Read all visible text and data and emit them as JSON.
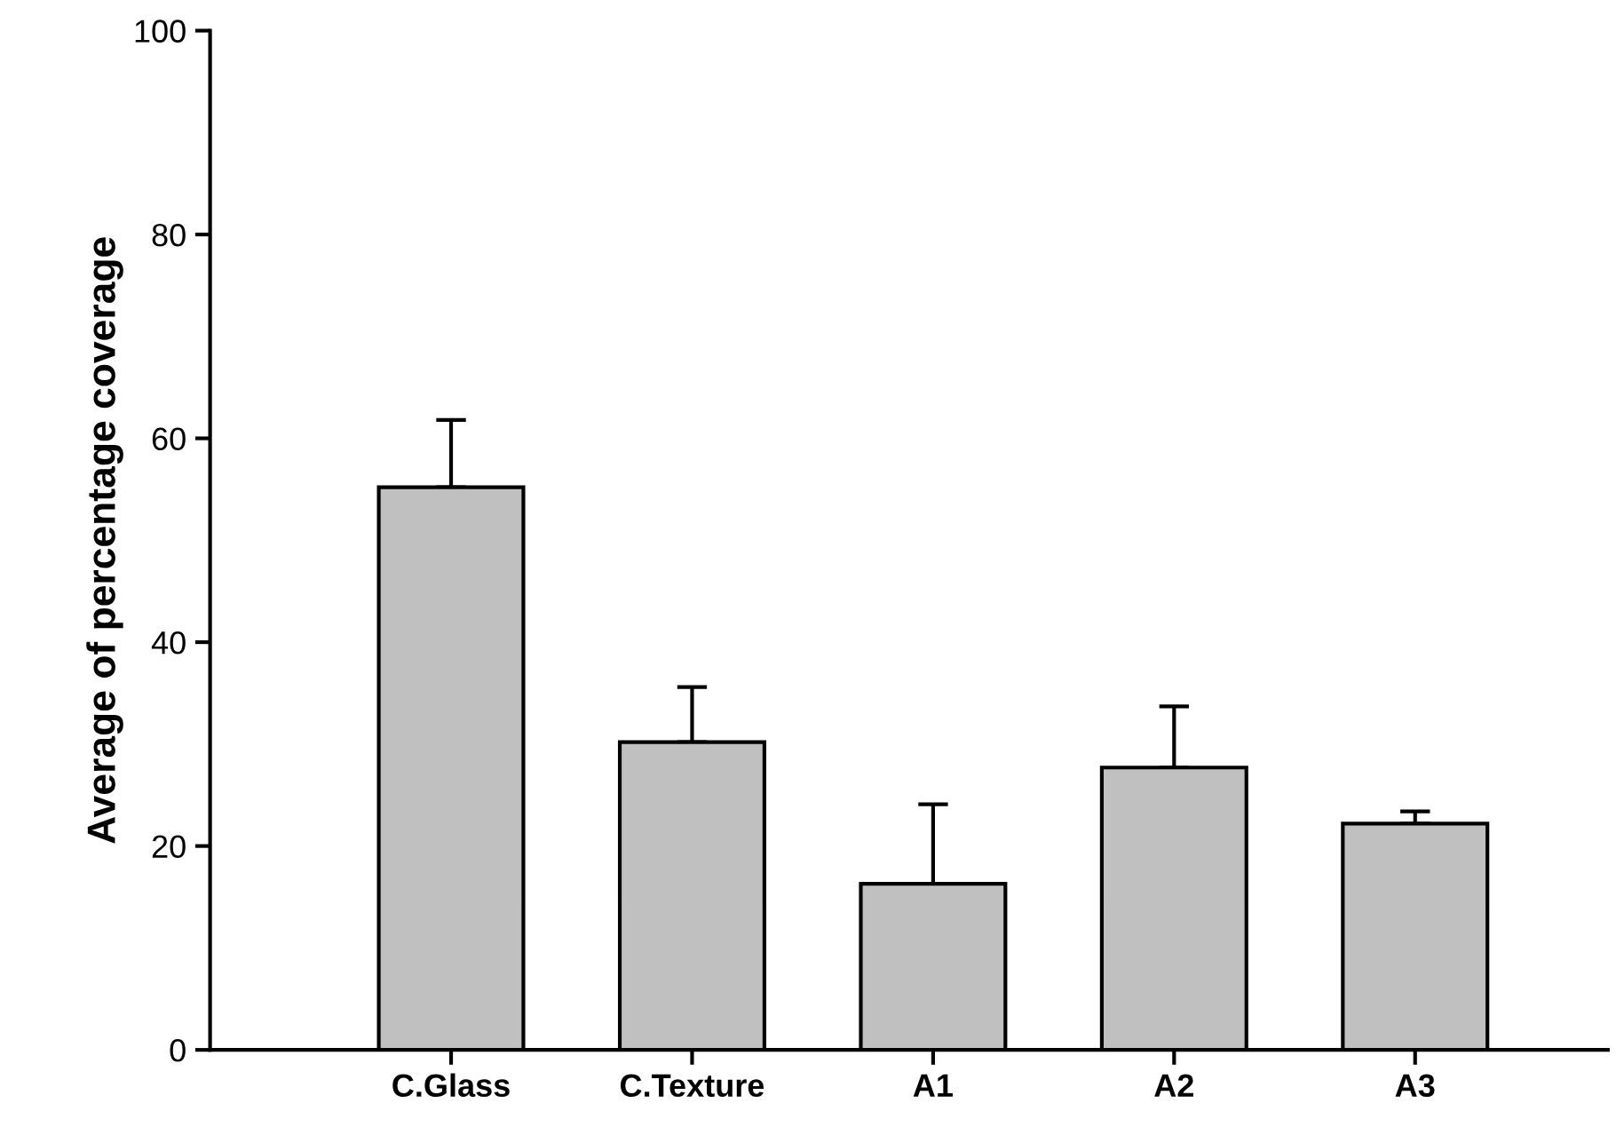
{
  "chart_data": {
    "type": "bar",
    "ylabel": "Average of percentage coverage",
    "categories": [
      "C.Glass",
      "C.Texture",
      "A1",
      "A2",
      "A3"
    ],
    "values": [
      55.2,
      30.2,
      16.3,
      27.7,
      22.2
    ],
    "errors": [
      [
        55.2,
        61.8
      ],
      [
        30.2,
        35.6
      ],
      [
        16.3,
        24.1
      ],
      [
        27.7,
        33.7
      ],
      [
        22.2,
        23.4
      ]
    ],
    "color": "#c0c0c0",
    "ylim": [
      0,
      100
    ],
    "yticks": [
      0,
      20,
      40,
      60,
      80,
      100
    ],
    "grid": false
  }
}
